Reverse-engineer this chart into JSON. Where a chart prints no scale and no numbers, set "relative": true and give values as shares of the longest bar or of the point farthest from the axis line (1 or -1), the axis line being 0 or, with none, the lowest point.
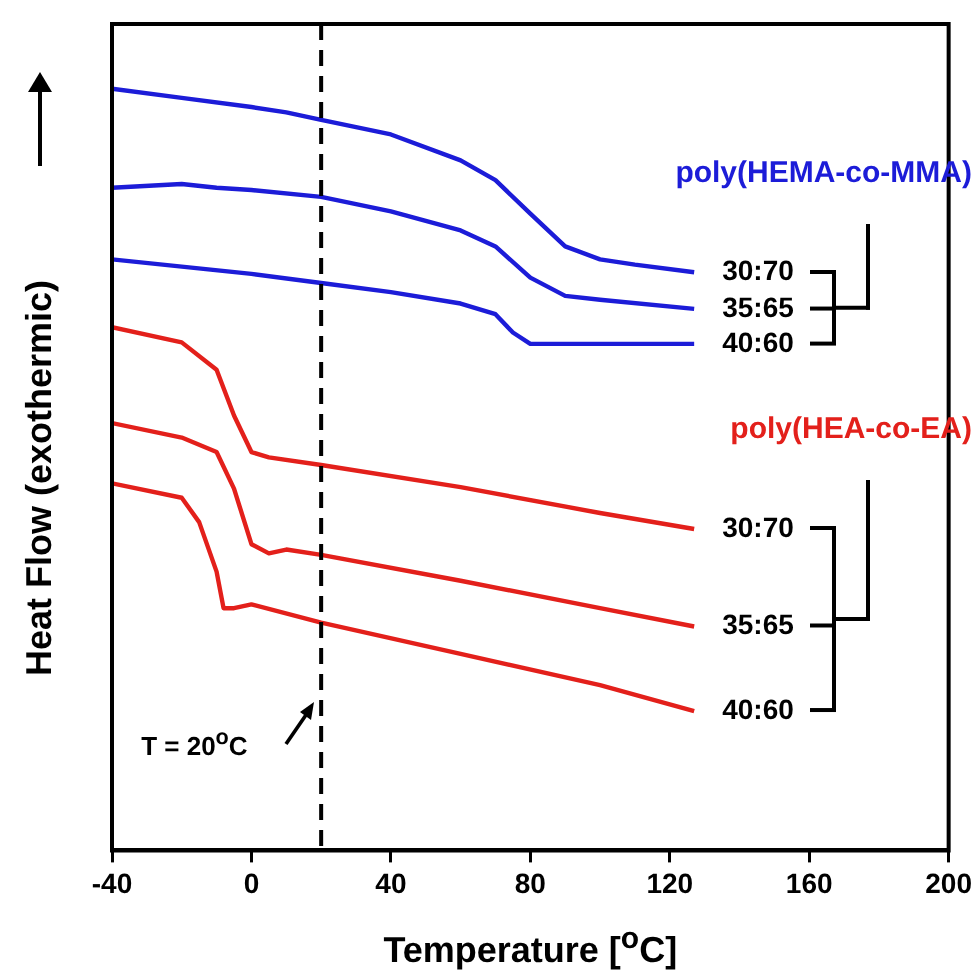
{
  "chart_data": {
    "type": "line",
    "relative": true,
    "xlabel": "Temperature  [$^{o}$C]",
    "ylabel": "Heat Flow  (exothermic)",
    "xlim": [
      -40,
      200
    ],
    "xticks": [
      -40,
      0,
      40,
      80,
      120,
      160,
      200
    ],
    "grid": false,
    "legend": false,
    "marker": "none",
    "line_style": "solid",
    "series": [
      {
        "color": "#1c1cd8",
        "x": [
          -40,
          -20,
          0,
          10,
          20,
          40,
          60,
          70,
          80,
          90,
          100,
          110,
          127
        ],
        "values": [
          1.0,
          0.988,
          0.976,
          0.969,
          0.959,
          0.94,
          0.906,
          0.88,
          0.836,
          0.793,
          0.776,
          0.769,
          0.759
        ]
      },
      {
        "color": "#1c1cd8",
        "x": [
          -40,
          -20,
          -10,
          0,
          20,
          40,
          60,
          70,
          80,
          90,
          100,
          127
        ],
        "values": [
          0.87,
          0.875,
          0.87,
          0.867,
          0.858,
          0.839,
          0.814,
          0.793,
          0.752,
          0.728,
          0.723,
          0.711
        ]
      },
      {
        "color": "#1c1cd8",
        "x": [
          -40,
          0,
          20,
          40,
          60,
          70,
          75,
          80,
          90,
          127
        ],
        "values": [
          0.776,
          0.757,
          0.745,
          0.733,
          0.718,
          0.704,
          0.68,
          0.665,
          0.665,
          0.665
        ]
      },
      {
        "color": "#e3201b",
        "x": [
          -40,
          -20,
          -10,
          -5,
          0,
          5,
          20,
          60,
          100,
          127
        ],
        "values": [
          0.687,
          0.667,
          0.631,
          0.571,
          0.523,
          0.516,
          0.506,
          0.477,
          0.443,
          0.422
        ]
      },
      {
        "color": "#e3201b",
        "x": [
          -40,
          -20,
          -10,
          -5,
          0,
          5,
          10,
          20,
          60,
          100,
          127
        ],
        "values": [
          0.561,
          0.542,
          0.523,
          0.475,
          0.402,
          0.39,
          0.395,
          0.388,
          0.354,
          0.318,
          0.294
        ]
      },
      {
        "color": "#e3201b",
        "x": [
          -40,
          -20,
          -15,
          -10,
          -8,
          -5,
          0,
          20,
          60,
          100,
          127
        ],
        "values": [
          0.482,
          0.463,
          0.431,
          0.366,
          0.318,
          0.318,
          0.323,
          0.299,
          0.258,
          0.217,
          0.183
        ]
      }
    ],
    "annotations": [
      "poly(HEMA-co-MMA)",
      "30:70",
      "35:65",
      "40:60",
      "poly(HEA-co-EA)",
      "30:70",
      "35:65",
      "40:60"
    ],
    "ref_lines": [
      {
        "axis": "x",
        "value": 20,
        "label": "T = 20$^{o}$C",
        "color": "#000000",
        "line_style": "dashed"
      }
    ]
  }
}
